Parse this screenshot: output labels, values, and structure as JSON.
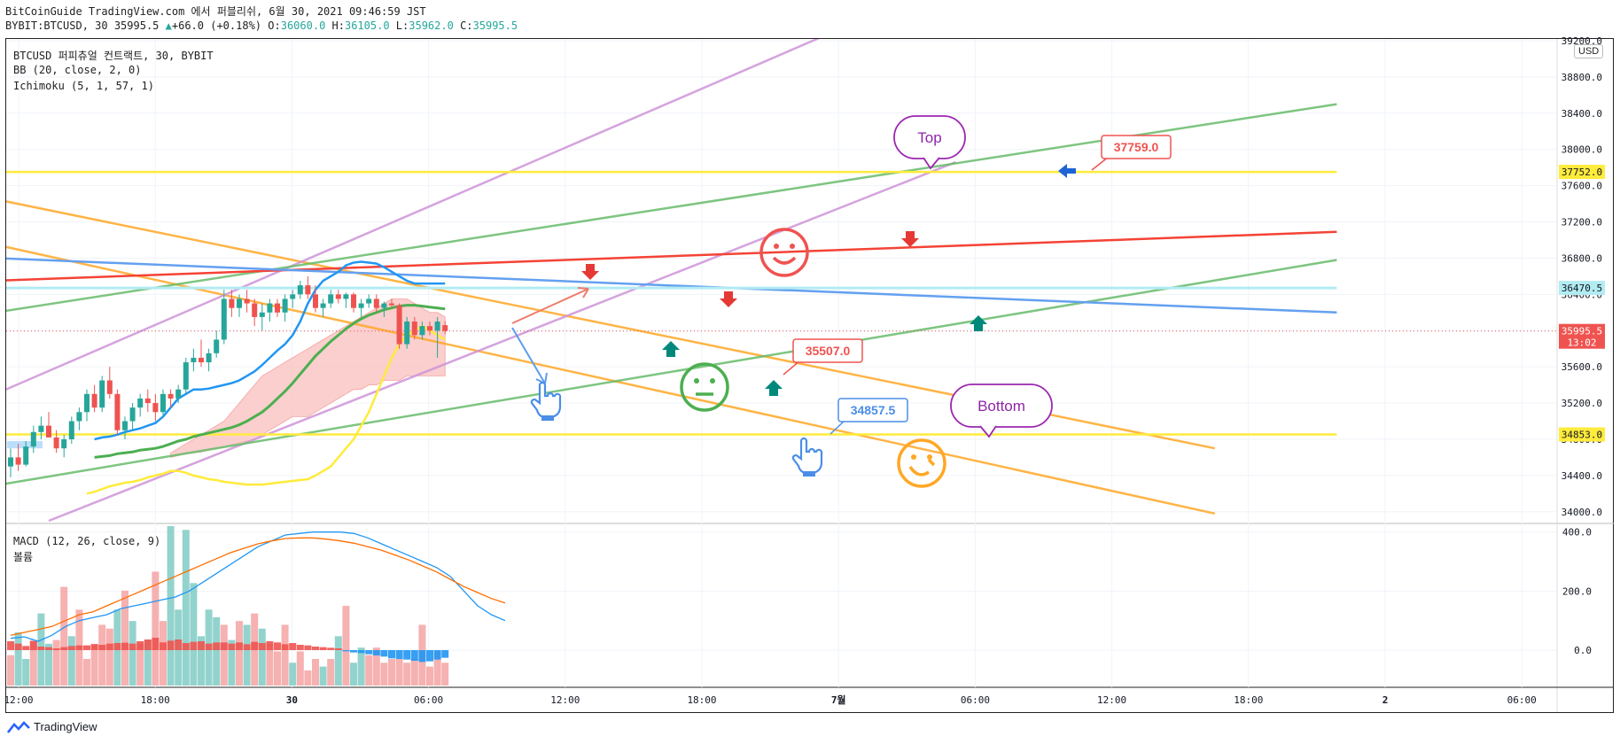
{
  "header": {
    "line1": "BitCoinGuide TradingView.com 에서 퍼블리쉬, 6월 30, 2021 09:46:59 JST",
    "symbol": "BYBIT:BTCUSD, 30",
    "last": "35995.5",
    "change": "+66.0 (+0.18%)",
    "o_label": "O:",
    "o": "36060.0",
    "h_label": "H:",
    "h": "36105.0",
    "l_label": "L:",
    "l": "35962.0",
    "c_label": "C:",
    "c": "35995.5"
  },
  "legend": {
    "title": "BTCUSD 퍼피츄얼 컨트랙트, 30, BYBIT",
    "bb": "BB (20, close, 2, 0)",
    "ichimoku": "Ichimoku (5, 1, 57, 1)",
    "macd": "MACD (12, 26, close, 9)",
    "volume": "볼륨"
  },
  "currency": "USD",
  "footer_brand": "TradingView",
  "colors": {
    "up": "#26a69a",
    "down": "#ef5350",
    "bb": "#2196f3",
    "ichiGreen": "#4caf50",
    "ichiYellow": "#ffeb3b",
    "cloud": "#f9c7c5",
    "orange": "#ffa726",
    "purple": "#ce93d8",
    "green": "#66bb6a",
    "red": "#f44336",
    "blue": "#64a0f0",
    "yellow": "#ffeb3b",
    "lightblue": "#b2ebf2"
  },
  "price_marks": [
    {
      "label": "37752.0",
      "value": 37752.0,
      "style": "yellow"
    },
    {
      "label": "36470.5",
      "value": 36470.5,
      "style": "lightblue"
    },
    {
      "label": "35995.5",
      "value": 35995.5,
      "style": "red",
      "sub": "13:02"
    },
    {
      "label": "34853.0",
      "value": 34853.0,
      "style": "yellow"
    }
  ],
  "annotations": {
    "callout1": "37759.0",
    "callout2": "35507.0",
    "callout3": "34857.5",
    "bubble_top": "Top",
    "bubble_bottom": "Bottom"
  },
  "chart_data": [
    {
      "type": "candlestick",
      "title": "BTCUSD 퍼피츄얼 컨트랙트, 30, BYBIT",
      "ylim": [
        33900,
        39200
      ],
      "y_ticks": [
        39200,
        38800,
        38400,
        38000,
        37600,
        37200,
        36800,
        36400,
        36000,
        35600,
        35200,
        34800,
        34400,
        34000
      ],
      "y_tick_labels": [
        "39200.0",
        "38800.0",
        "38400.0",
        "38000.0",
        "37600.0",
        "37200.0",
        "36800.0",
        "36400.0",
        "36000.0",
        "35600.0",
        "35200.0",
        "34800.0",
        "34400.0",
        "34000.0"
      ],
      "x_ticks": [
        "12:00",
        "18:00",
        "30",
        "06:00",
        "12:00",
        "18:00",
        "7월",
        "06:00",
        "12:00",
        "18:00",
        "2",
        "06:00"
      ],
      "candles": [
        [
          34500,
          34700,
          34380,
          34600
        ],
        [
          34600,
          34750,
          34450,
          34520
        ],
        [
          34520,
          34780,
          34500,
          34720
        ],
        [
          34720,
          34950,
          34650,
          34880
        ],
        [
          34880,
          35050,
          34800,
          34950
        ],
        [
          34950,
          35100,
          34850,
          34820
        ],
        [
          34820,
          34900,
          34650,
          34700
        ],
        [
          34700,
          34850,
          34600,
          34800
        ],
        [
          34800,
          35050,
          34750,
          35000
        ],
        [
          35000,
          35150,
          34900,
          35100
        ],
        [
          35100,
          35350,
          35000,
          35300
        ],
        [
          35300,
          35400,
          35100,
          35150
        ],
        [
          35150,
          35500,
          35100,
          35450
        ],
        [
          35450,
          35600,
          35250,
          35300
        ],
        [
          35300,
          35350,
          34850,
          34900
        ],
        [
          34900,
          35050,
          34800,
          35000
        ],
        [
          35000,
          35200,
          34900,
          35150
        ],
        [
          35150,
          35300,
          35050,
          35250
        ],
        [
          35250,
          35350,
          35100,
          35200
        ],
        [
          35200,
          35300,
          35000,
          35100
        ],
        [
          35100,
          35350,
          35050,
          35300
        ],
        [
          35300,
          35350,
          35150,
          35250
        ],
        [
          35250,
          35400,
          35200,
          35350
        ],
        [
          35350,
          35700,
          35300,
          35650
        ],
        [
          35650,
          35800,
          35550,
          35700
        ],
        [
          35700,
          35900,
          35600,
          35650
        ],
        [
          35650,
          35800,
          35550,
          35750
        ],
        [
          35750,
          36000,
          35700,
          35900
        ],
        [
          35900,
          36450,
          35850,
          36350
        ],
        [
          36350,
          36450,
          36150,
          36250
        ],
        [
          36250,
          36400,
          36150,
          36350
        ],
        [
          36350,
          36450,
          36200,
          36300
        ],
        [
          36300,
          36350,
          36050,
          36150
        ],
        [
          36150,
          36300,
          36000,
          36200
        ],
        [
          36200,
          36350,
          36100,
          36300
        ],
        [
          36300,
          36350,
          36150,
          36200
        ],
        [
          36200,
          36400,
          36100,
          36350
        ],
        [
          36350,
          36450,
          36250,
          36400
        ],
        [
          36400,
          36550,
          36350,
          36500
        ],
        [
          36500,
          36600,
          36350,
          36400
        ],
        [
          36400,
          36500,
          36200,
          36250
        ],
        [
          36250,
          36350,
          36150,
          36300
        ],
        [
          36300,
          36450,
          36250,
          36400
        ],
        [
          36400,
          36450,
          36300,
          36350
        ],
        [
          36350,
          36420,
          36250,
          36400
        ],
        [
          36400,
          36420,
          36200,
          36250
        ],
        [
          36250,
          36350,
          36150,
          36300
        ],
        [
          36300,
          36400,
          36250,
          36350
        ],
        [
          36350,
          36400,
          36200,
          36250
        ],
        [
          36250,
          36320,
          36150,
          36300
        ],
        [
          36300,
          36350,
          36250,
          36280
        ],
        [
          36280,
          36300,
          35800,
          35850
        ],
        [
          35850,
          36150,
          35800,
          36100
        ],
        [
          36100,
          36150,
          35900,
          35950
        ],
        [
          35950,
          36100,
          35900,
          36050
        ],
        [
          36050,
          36100,
          35950,
          36000
        ],
        [
          36000,
          36150,
          35700,
          36100
        ],
        [
          36060,
          36105,
          35962,
          35995.5
        ]
      ],
      "bb_upper": [
        34800,
        34820,
        34830,
        34850,
        34880,
        34900,
        34920,
        34950,
        34980,
        35050,
        35150,
        35250,
        35300,
        35350,
        35350,
        35360,
        35380,
        35400,
        35420,
        35450,
        35500,
        35550,
        35620,
        35700,
        35780,
        35850,
        35950,
        36100,
        36300,
        36450,
        36550,
        36600,
        36650,
        36720,
        36750,
        36760,
        36750,
        36740,
        36700,
        36650,
        36600,
        36550,
        36520,
        36520,
        36520,
        36520,
        36520
      ],
      "bb_basis": [
        34600,
        34610,
        34620,
        34640,
        34650,
        34660,
        34680,
        34690,
        34700,
        34720,
        34750,
        34780,
        34800,
        34830,
        34850,
        34870,
        34890,
        34910,
        34930,
        34960,
        35000,
        35050,
        35100,
        35170,
        35250,
        35330,
        35420,
        35520,
        35620,
        35720,
        35800,
        35880,
        35950,
        36020,
        36080,
        36130,
        36170,
        36200,
        36230,
        36250,
        36270,
        36280,
        36280,
        36270,
        36260,
        36250,
        36240
      ],
      "tenkan": [
        34200,
        34220,
        34250,
        34280,
        34300,
        34320,
        34330,
        34350,
        34380,
        34400,
        34420,
        34450,
        34450,
        34430,
        34400,
        34380,
        34360,
        34350,
        34330,
        34320,
        34310,
        34300,
        34300,
        34300,
        34310,
        34320,
        34330,
        34340,
        34350,
        34360,
        34400,
        34450,
        34500,
        34600,
        34700,
        34800,
        34950,
        35100,
        35300,
        35500,
        35700,
        35850,
        35950,
        36000,
        36050,
        36000,
        35950,
        35900
      ],
      "cloud_top": [
        34650,
        34700,
        34750,
        34800,
        34850,
        34900,
        34950,
        35000,
        35100,
        35200,
        35300,
        35400,
        35500,
        35550,
        35600,
        35650,
        35700,
        35750,
        35800,
        35850,
        35900,
        35950,
        36000,
        36050,
        36100,
        36150,
        36200,
        36250,
        36300,
        36350,
        36350,
        36350,
        36300,
        36250,
        36200,
        36200,
        36150
      ],
      "cloud_bottom": [
        34600,
        34620,
        34640,
        34650,
        34660,
        34680,
        34700,
        34720,
        34740,
        34760,
        34780,
        34800,
        34850,
        34900,
        34950,
        35000,
        35050,
        35050,
        35050,
        35100,
        35150,
        35200,
        35250,
        35300,
        35350,
        35350,
        35400,
        35400,
        35450,
        35450,
        35450,
        35500,
        35500,
        35500,
        35500,
        35500,
        35500
      ]
    },
    {
      "type": "bar",
      "title": "MACD (12, 26, close, 9)",
      "ylim": [
        -120,
        420
      ],
      "y_ticks": [
        400,
        200,
        0
      ],
      "y_tick_labels": [
        "400.0",
        "200.0",
        "0.0"
      ],
      "series": [
        {
          "name": "MACD (12, 26, close, 9)",
          "values": [
            40,
            45,
            30,
            50,
            80,
            100,
            110,
            120,
            140,
            150,
            160,
            170,
            180,
            200,
            230,
            260,
            290,
            320,
            350,
            370,
            390,
            395,
            400,
            400,
            400,
            395,
            380,
            360,
            340,
            320,
            300,
            280,
            250,
            200,
            150,
            120,
            100
          ]
        },
        {
          "name": "볼륨",
          "values": [
            50,
            60,
            70,
            80,
            100,
            120,
            130,
            150,
            170,
            190,
            210,
            230,
            250,
            270,
            290,
            310,
            330,
            345,
            360,
            370,
            378,
            380,
            380,
            376,
            370,
            362,
            350,
            338,
            322,
            305,
            285,
            265,
            240,
            215,
            195,
            175,
            160
          ]
        }
      ],
      "histogram": [
        [
          30,
          -1
        ],
        [
          22,
          1
        ],
        [
          14,
          1
        ],
        [
          30,
          -1
        ],
        [
          12,
          1
        ],
        [
          10,
          1
        ],
        [
          6,
          -1
        ],
        [
          10,
          -1
        ],
        [
          14,
          1
        ],
        [
          16,
          -1
        ],
        [
          16,
          -1
        ],
        [
          20,
          -1
        ],
        [
          18,
          -1
        ],
        [
          22,
          -1
        ],
        [
          24,
          1
        ],
        [
          25,
          -1
        ],
        [
          22,
          1
        ],
        [
          30,
          -1
        ],
        [
          36,
          1
        ],
        [
          42,
          -1
        ],
        [
          26,
          -1
        ],
        [
          32,
          1
        ],
        [
          36,
          1
        ],
        [
          24,
          1
        ],
        [
          28,
          1
        ],
        [
          30,
          1
        ],
        [
          22,
          1
        ],
        [
          26,
          1
        ],
        [
          26,
          -1
        ],
        [
          22,
          1
        ],
        [
          26,
          -1
        ],
        [
          20,
          1
        ],
        [
          28,
          -1
        ],
        [
          24,
          1
        ],
        [
          30,
          -1
        ],
        [
          26,
          -1
        ],
        [
          20,
          -1
        ],
        [
          24,
          1
        ],
        [
          18,
          -1
        ],
        [
          16,
          -1
        ],
        [
          12,
          -1
        ],
        [
          10,
          1
        ],
        [
          8,
          -1
        ],
        [
          6,
          1
        ],
        [
          -4,
          -1
        ],
        [
          -8,
          1
        ],
        [
          -10,
          1
        ],
        [
          -14,
          -1
        ],
        [
          -18,
          -1
        ],
        [
          -22,
          -1
        ],
        [
          -28,
          -1
        ],
        [
          -30,
          -1
        ],
        [
          -32,
          -1
        ],
        [
          -36,
          -1
        ],
        [
          -40,
          -1
        ],
        [
          -38,
          -1
        ],
        [
          -32,
          -1
        ],
        [
          -26,
          -1
        ]
      ],
      "volume": [
        80,
        140,
        70,
        120,
        190,
        110,
        120,
        260,
        130,
        200,
        70,
        110,
        160,
        150,
        200,
        250,
        170,
        110,
        120,
        300,
        170,
        420,
        200,
        410,
        270,
        130,
        200,
        180,
        160,
        120,
        170,
        160,
        190,
        150,
        110,
        90,
        160,
        60,
        90,
        40,
        70,
        50,
        70,
        130,
        210,
        60,
        100,
        80,
        100,
        60,
        70,
        70,
        60,
        70,
        160,
        50,
        90,
        60
      ]
    }
  ]
}
